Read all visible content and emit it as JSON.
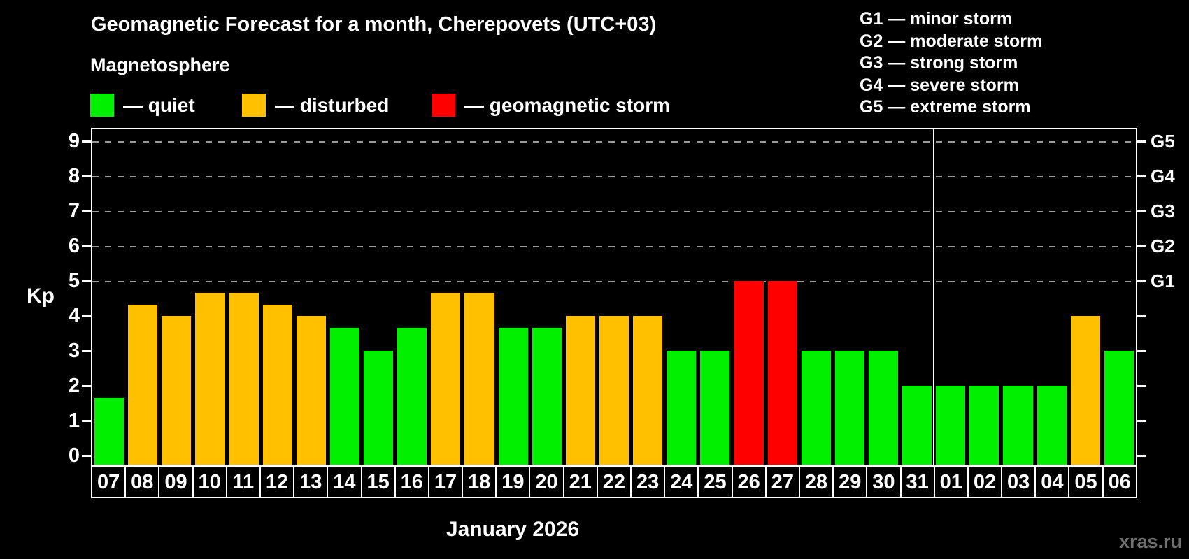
{
  "header": {
    "title": "Geomagnetic Forecast for a month, Cherepovets (UTC+03)",
    "subtitle": "Magnetosphere"
  },
  "legend": {
    "items": [
      {
        "name": "quiet",
        "label": "— quiet",
        "color": "#00f000"
      },
      {
        "name": "disturbed",
        "label": "— disturbed",
        "color": "#ffc000"
      },
      {
        "name": "storm",
        "label": "— geomagnetic storm",
        "color": "#ff0000"
      }
    ]
  },
  "g_legend": {
    "lines": [
      "G1 — minor storm",
      "G2 — moderate storm",
      "G3 — strong storm",
      "G4 — severe storm",
      "G5 — extreme storm"
    ]
  },
  "watermark": "xras.ru",
  "chart_data": {
    "type": "bar",
    "title": "Geomagnetic Forecast for a month, Cherepovets (UTC+03)",
    "xlabel": "January 2026",
    "ylabel": "Kp",
    "ylim": [
      0,
      9.4
    ],
    "yticks": [
      0,
      1,
      2,
      3,
      4,
      5,
      6,
      7,
      8,
      9
    ],
    "grid_levels": [
      5,
      6,
      7,
      8,
      9
    ],
    "grid_style": "dashed",
    "legend_position": "top-left",
    "right_axis_labels": [
      {
        "kp": 5,
        "label": "G1"
      },
      {
        "kp": 6,
        "label": "G2"
      },
      {
        "kp": 7,
        "label": "G3"
      },
      {
        "kp": 8,
        "label": "G4"
      },
      {
        "kp": 9,
        "label": "G5"
      }
    ],
    "categories": [
      "07",
      "08",
      "09",
      "10",
      "11",
      "12",
      "13",
      "14",
      "15",
      "16",
      "17",
      "18",
      "19",
      "20",
      "21",
      "22",
      "23",
      "24",
      "25",
      "26",
      "27",
      "28",
      "29",
      "30",
      "31",
      "01",
      "02",
      "03",
      "04",
      "05",
      "06"
    ],
    "values": [
      1.67,
      4.33,
      4,
      4.67,
      4.67,
      4.33,
      4,
      3.67,
      3,
      3.67,
      4.67,
      4.67,
      3.67,
      3.67,
      4,
      4,
      4,
      3,
      3,
      5,
      5,
      3,
      3,
      3,
      2,
      2,
      2,
      2,
      2,
      4,
      3
    ],
    "statuses": [
      "quiet",
      "disturbed",
      "disturbed",
      "disturbed",
      "disturbed",
      "disturbed",
      "disturbed",
      "quiet",
      "quiet",
      "quiet",
      "disturbed",
      "disturbed",
      "quiet",
      "quiet",
      "disturbed",
      "disturbed",
      "disturbed",
      "quiet",
      "quiet",
      "storm",
      "storm",
      "quiet",
      "quiet",
      "quiet",
      "quiet",
      "quiet",
      "quiet",
      "quiet",
      "quiet",
      "disturbed",
      "quiet"
    ],
    "colors": {
      "quiet": "#00f000",
      "disturbed": "#ffc000",
      "storm": "#ff0000"
    },
    "month_separator_after_index": 24
  }
}
